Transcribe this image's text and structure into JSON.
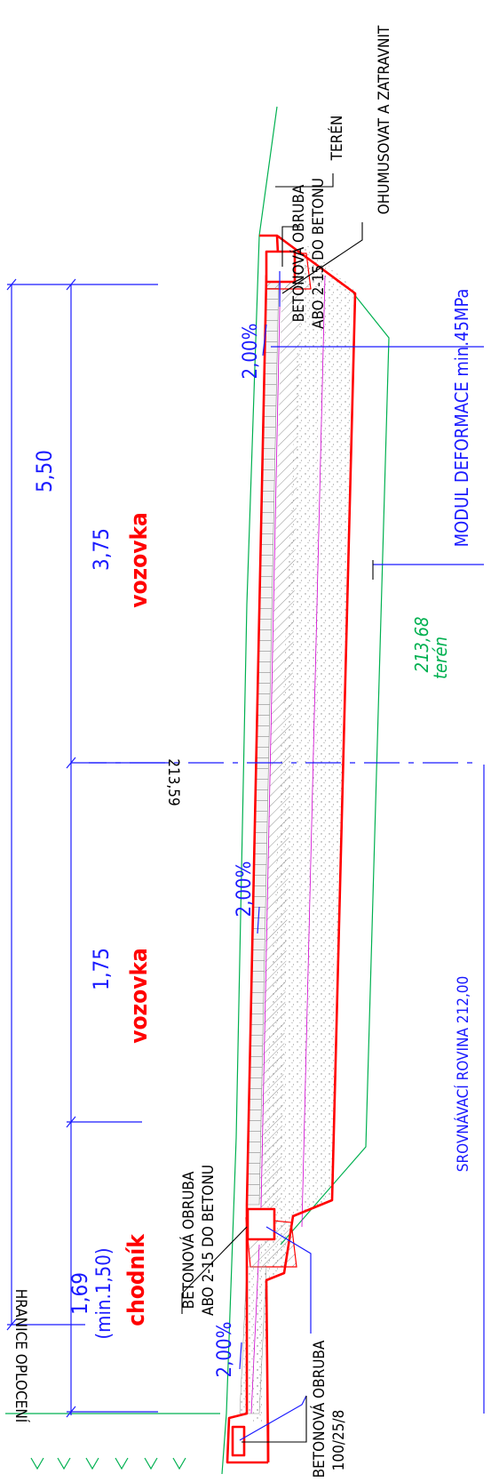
{
  "colors": {
    "dimension": "#1a1aff",
    "outline": "#ff0000",
    "terrain": "#00b050",
    "label": "#000000",
    "layer": "#d000d0",
    "hatch": "#555555"
  },
  "dimensions": {
    "total": "5,50",
    "carriageway_right": "3,75",
    "carriageway_left": "1,75",
    "sidewalk": "1,69",
    "sidewalk_min": "(min.1,50)"
  },
  "zones": {
    "carriageway_right": "vozovka",
    "carriageway_left": "vozovka",
    "sidewalk": "chodník"
  },
  "slopes": {
    "right": "2,00%",
    "left": "2,00%",
    "sidewalk": "2,00%"
  },
  "labels": {
    "terrain": "TERÉN",
    "topsoil": "OHUMUSOVAT A ZATRAVNIT",
    "curb_right_line1": "BETONOVÁ OBRUBA",
    "curb_right_line2": "ABO 2-15 DO BETONU",
    "curb_left_line1": "BETONOVÁ OBRUBA",
    "curb_left_line2": "ABO 2-15 DO BETONU",
    "edge_curb_line1": "BETONOVÁ OBRUBA",
    "edge_curb_line2": "100/25/8",
    "fence": "HRANICE OPLOCENÍ",
    "modulus": "MODUL DEFORMACE  min.45MPa",
    "subgrade": "SROVNÁVACÍ ROVINA  212,00",
    "terrain_elev": "213,68",
    "terrain_elev_word": "terén",
    "axis_elev": "213,59"
  }
}
